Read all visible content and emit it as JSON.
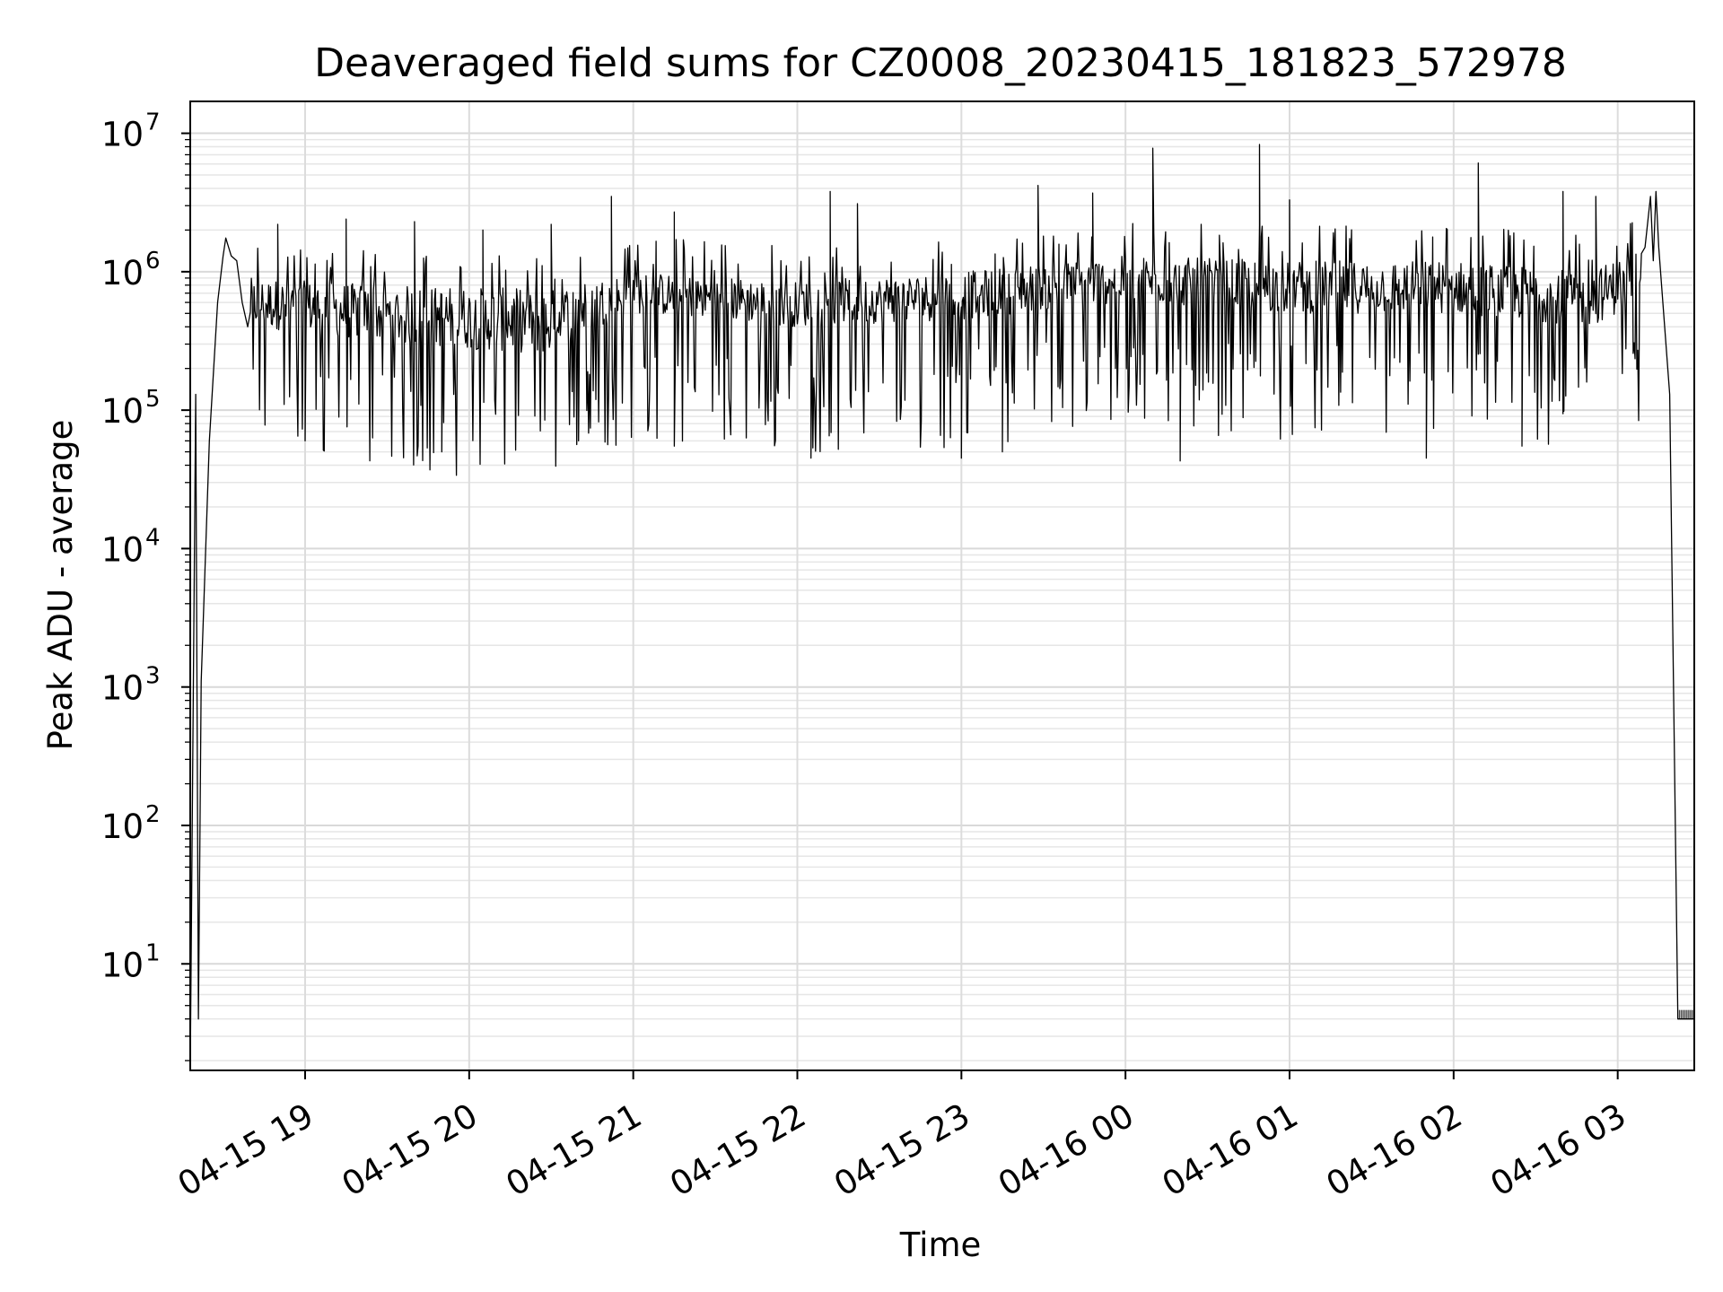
{
  "chart_data": {
    "type": "line",
    "title": "Deaveraged field sums for CZ0008_20230415_181823_572978",
    "xlabel": "Time",
    "ylabel": "Peak ADU - average",
    "yscale": "log",
    "ylim": [
      1.7,
      17000000
    ],
    "xlim": [
      "2023-04-15 18:18",
      "2023-04-16 03:28"
    ],
    "grid": {
      "major": true,
      "minor": true
    },
    "line_color": "#000000",
    "x_ticks": [
      "04-15 19",
      "04-15 20",
      "04-15 21",
      "04-15 22",
      "04-15 23",
      "04-16 00",
      "04-16 01",
      "04-16 02",
      "04-16 03"
    ],
    "y_ticks": [
      {
        "base": "10",
        "exp": "1"
      },
      {
        "base": "10",
        "exp": "2"
      },
      {
        "base": "10",
        "exp": "3"
      },
      {
        "base": "10",
        "exp": "4"
      },
      {
        "base": "10",
        "exp": "5"
      },
      {
        "base": "10",
        "exp": "6"
      },
      {
        "base": "10",
        "exp": "7"
      }
    ],
    "series": [
      {
        "baseline_band": [
          [
            "2023-04-15 18:40",
            400000,
            900000
          ],
          [
            "2023-04-15 19:30",
            300000,
            800000
          ],
          [
            "2023-04-15 20:30",
            250000,
            750000
          ],
          [
            "2023-04-15 21:00",
            500000,
            1000000
          ],
          [
            "2023-04-15 22:00",
            400000,
            850000
          ],
          [
            "2023-04-15 23:00",
            450000,
            1000000
          ],
          [
            "2023-04-16 00:00",
            600000,
            1300000
          ],
          [
            "2023-04-16 01:00",
            500000,
            1200000
          ],
          [
            "2023-04-16 02:00",
            500000,
            1200000
          ],
          [
            "2023-04-16 02:50",
            400000,
            1000000
          ],
          [
            "2023-04-16 03:10",
            600000,
            1500000
          ]
        ],
        "points": [
          [
            "2023-04-15 18:18",
            1.7
          ],
          [
            "2023-04-15 18:20",
            130000
          ],
          [
            "2023-04-15 18:21",
            4
          ],
          [
            "2023-04-15 18:22",
            1100
          ],
          [
            "2023-04-15 18:25",
            60000
          ],
          [
            "2023-04-15 18:28",
            600000
          ],
          [
            "2023-04-15 18:30",
            1300000
          ],
          [
            "2023-04-15 18:31",
            1750000
          ],
          [
            "2023-04-15 18:33",
            1300000
          ],
          [
            "2023-04-15 18:35",
            1200000
          ],
          [
            "2023-04-15 18:37",
            600000
          ],
          [
            "2023-04-15 18:39",
            400000
          ],
          [
            "2023-04-16 03:10",
            1500000
          ],
          [
            "2023-04-16 03:12",
            3500000
          ],
          [
            "2023-04-16 03:13",
            1200000
          ],
          [
            "2023-04-16 03:14",
            3800000
          ],
          [
            "2023-04-16 03:15",
            1500000
          ],
          [
            "2023-04-16 03:19",
            130000
          ],
          [
            "2023-04-16 03:22",
            4
          ],
          [
            "2023-04-16 03:28",
            4
          ]
        ],
        "low_spikes": [
          [
            "2023-04-15 19:00",
            60000
          ],
          [
            "2023-04-15 19:50",
            50000
          ],
          [
            "2023-04-15 20:40",
            60000
          ],
          [
            "2023-04-15 21:15",
            55000
          ],
          [
            "2023-04-15 22:05",
            45000
          ],
          [
            "2023-04-15 23:00",
            45000
          ],
          [
            "2023-04-15 23:15",
            50000
          ],
          [
            "2023-04-16 00:20",
            43000
          ],
          [
            "2023-04-16 01:50",
            45000
          ],
          [
            "2023-04-16 02:25",
            55000
          ]
        ],
        "high_spikes": [
          [
            "2023-04-15 18:50",
            2200000
          ],
          [
            "2023-04-15 19:15",
            2400000
          ],
          [
            "2023-04-15 19:40",
            2300000
          ],
          [
            "2023-04-15 20:05",
            2000000
          ],
          [
            "2023-04-15 20:30",
            2200000
          ],
          [
            "2023-04-15 20:52",
            3500000
          ],
          [
            "2023-04-15 21:15",
            2700000
          ],
          [
            "2023-04-15 22:12",
            3800000
          ],
          [
            "2023-04-15 22:22",
            3100000
          ],
          [
            "2023-04-15 23:28",
            4200000
          ],
          [
            "2023-04-15 23:48",
            3700000
          ],
          [
            "2023-04-16 00:10",
            7800000
          ],
          [
            "2023-04-16 00:49",
            8300000
          ],
          [
            "2023-04-16 01:00",
            3300000
          ],
          [
            "2023-04-16 02:09",
            6100000
          ],
          [
            "2023-04-16 02:40",
            3800000
          ],
          [
            "2023-04-16 02:52",
            3500000
          ]
        ]
      }
    ]
  }
}
